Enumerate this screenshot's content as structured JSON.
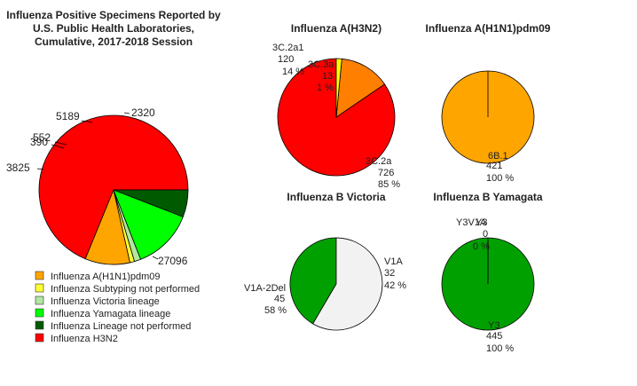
{
  "chart_data": [
    {
      "type": "pie",
      "title_lines": [
        "Influenza Positive Specimens Reported by",
        "U.S. Public Health Laboratories,",
        "Cumulative, 2017-2018 Session"
      ],
      "slices": [
        {
          "name": "Influenza H3N2",
          "label": "27096",
          "value": 27096,
          "color": "#ff0000"
        },
        {
          "name": "Influenza A(H1N1)pdm09",
          "label": "3825",
          "value": 3825,
          "color": "#ffa500"
        },
        {
          "name": "Influenza Subtyping not performed",
          "label": "390",
          "value": 390,
          "color": "#ffff33"
        },
        {
          "name": "Influenza Victoria lineage",
          "label": "552",
          "value": 552,
          "color": "#b3e6a1"
        },
        {
          "name": "Influenza Yamagata lineage",
          "label": "5189",
          "value": 5189,
          "color": "#00ff00"
        },
        {
          "name": "Influenza Lineage not performed",
          "label": "2320",
          "value": 2320,
          "color": "#005a00"
        }
      ],
      "legend": [
        {
          "label": "Influenza A(H1N1)pdm09",
          "color": "#ffa500"
        },
        {
          "label": "Influenza Subtyping not performed",
          "color": "#ffff33"
        },
        {
          "label": "Influenza Victoria lineage",
          "color": "#b3e6a1"
        },
        {
          "label": "Influenza Yamagata lineage",
          "color": "#00ff00"
        },
        {
          "label": "Influenza Lineage not performed",
          "color": "#005a00"
        },
        {
          "label": "Influenza H3N2",
          "color": "#ff0000"
        }
      ]
    },
    {
      "type": "pie",
      "title": "Influenza A(H3N2)",
      "slices": [
        {
          "name": "3C.2a",
          "value": 726,
          "count": "726",
          "percent": "85 %",
          "color": "#ff0000"
        },
        {
          "name": "3C.2a1",
          "value": 120,
          "count": "120",
          "percent": "14 %",
          "color": "#ff7f00"
        },
        {
          "name": "3C.3a",
          "value": 13,
          "count": "13",
          "percent": "1 %",
          "color": "#ffff00"
        }
      ]
    },
    {
      "type": "pie",
      "title": "Influenza A(H1N1)pdm09",
      "slices": [
        {
          "name": "6B.1",
          "value": 421,
          "count": "421",
          "percent": "100 %",
          "color": "#ffa500"
        }
      ]
    },
    {
      "type": "pie",
      "title": "Influenza B Victoria",
      "slices": [
        {
          "name": "V1A",
          "value": 32,
          "count": "32",
          "percent": "42 %",
          "color": "#00a000"
        },
        {
          "name": "V1A-2Del",
          "value": 45,
          "count": "45",
          "percent": "58 %",
          "color": "#f2f2f2"
        }
      ]
    },
    {
      "type": "pie",
      "title": "Influenza B Yamagata",
      "slices": [
        {
          "name": "Y3",
          "value": 445,
          "count": "445",
          "percent": "100 %",
          "color": "#00a000"
        },
        {
          "name": "Y3V1A",
          "value": 0,
          "count": "0",
          "percent": "0 %",
          "color": "#00a000"
        }
      ]
    }
  ]
}
